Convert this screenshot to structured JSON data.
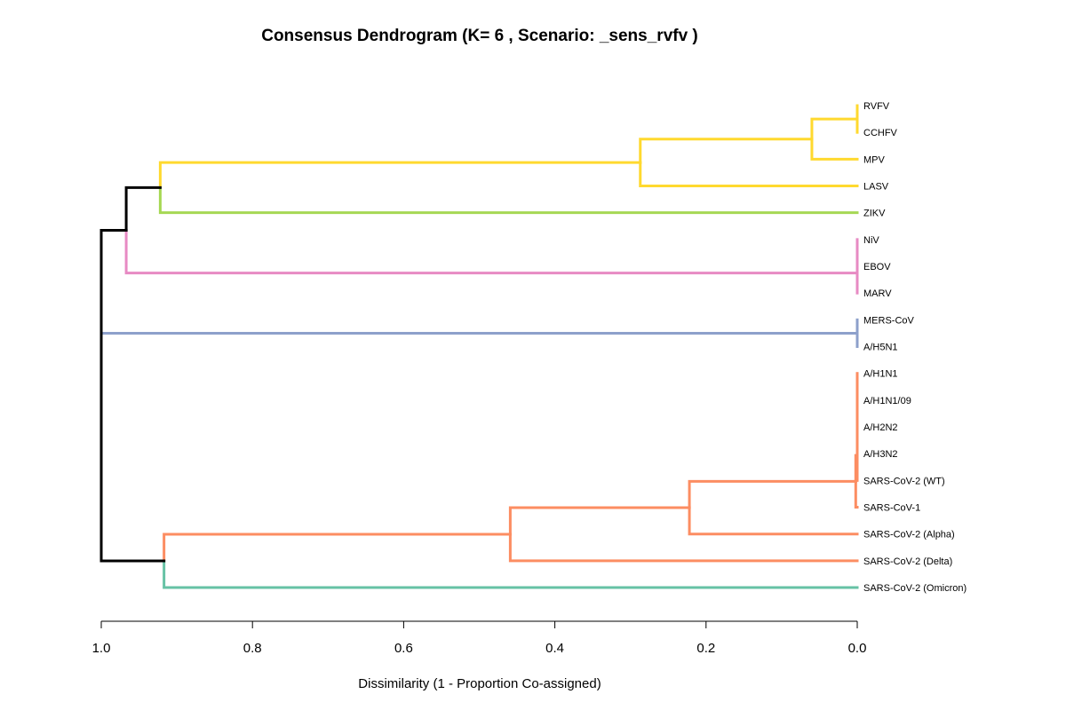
{
  "chart_data": {
    "type": "dendrogram",
    "title": "Consensus Dendrogram (K= 6 , Scenario:  _sens_rvfv )",
    "xlabel": "Dissimilarity (1 - Proportion Co-assigned)",
    "orientation": "horizontal, leaves on right",
    "xlim": [
      1.0,
      0.0
    ],
    "x_ticks": [
      1.0,
      0.8,
      0.6,
      0.4,
      0.2,
      0.0
    ],
    "x_tick_labels": [
      "1.0",
      "0.8",
      "0.6",
      "0.4",
      "0.2",
      "0.0"
    ],
    "leaves": [
      "RVFV",
      "CCHFV",
      "MPV",
      "LASV",
      "ZIKV",
      "NiV",
      "EBOV",
      "MARV",
      "MERS-CoV",
      "A/H5N1",
      "A/H1N1",
      "A/H1N1/09",
      "A/H2N2",
      "A/H3N2",
      "SARS-CoV-2 (WT)",
      "SARS-CoV-1",
      "SARS-CoV-2 (Alpha)",
      "SARS-CoV-2 (Delta)",
      "SARS-CoV-2 (Omicron)"
    ],
    "colors": {
      "yellow": "#FFD92F",
      "green": "#A6D854",
      "pink": "#E78AC3",
      "blue": "#8DA0CB",
      "orange": "#FC8D62",
      "teal": "#66C2A5",
      "black": "#000000"
    },
    "merges": [
      {
        "id": "m1",
        "children": [
          "RVFV",
          "CCHFV"
        ],
        "height": 0.0,
        "color": "yellow"
      },
      {
        "id": "m2",
        "children": [
          "m1",
          "MPV"
        ],
        "height": 0.06,
        "color": "yellow"
      },
      {
        "id": "m3",
        "children": [
          "m2",
          "LASV"
        ],
        "height": 0.287,
        "color": "yellow"
      },
      {
        "id": "m4",
        "children": [
          "m3",
          "ZIKV"
        ],
        "height": 0.922,
        "colors": [
          "yellow",
          "green"
        ]
      },
      {
        "id": "m5",
        "children": [
          "NiV",
          "EBOV"
        ],
        "height": 0.0,
        "color": "pink"
      },
      {
        "id": "m6",
        "children": [
          "m5",
          "MARV"
        ],
        "height": 0.0,
        "color": "pink"
      },
      {
        "id": "m7",
        "children": [
          "m4",
          "m6"
        ],
        "height": 0.967,
        "colors": [
          "black",
          "pink"
        ]
      },
      {
        "id": "m8",
        "children": [
          "MERS-CoV",
          "A/H5N1"
        ],
        "height": 0.0,
        "color": "blue"
      },
      {
        "id": "m9",
        "children": [
          "A/H1N1",
          "A/H1N1/09"
        ],
        "height": 0.0,
        "color": "orange"
      },
      {
        "id": "m10",
        "children": [
          "m9",
          "A/H2N2"
        ],
        "height": 0.0,
        "color": "orange"
      },
      {
        "id": "m11",
        "children": [
          "m10",
          "A/H3N2"
        ],
        "height": 0.0,
        "color": "orange"
      },
      {
        "id": "m12",
        "children": [
          "m11",
          "SARS-CoV-2 (WT)"
        ],
        "height": 0.0,
        "color": "orange"
      },
      {
        "id": "m13",
        "children": [
          "m12",
          "SARS-CoV-1"
        ],
        "height": 0.002,
        "color": "orange"
      },
      {
        "id": "m14",
        "children": [
          "m13",
          "SARS-CoV-2 (Alpha)"
        ],
        "height": 0.222,
        "color": "orange"
      },
      {
        "id": "m15",
        "children": [
          "m14",
          "SARS-CoV-2 (Delta)"
        ],
        "height": 0.459,
        "color": "orange"
      },
      {
        "id": "m16",
        "children": [
          "m15",
          "SARS-CoV-2 (Omicron)"
        ],
        "height": 0.917,
        "colors": [
          "orange",
          "teal"
        ]
      },
      {
        "id": "m17",
        "children": [
          "m7",
          "m8"
        ],
        "height": 1.0,
        "colors": [
          "black",
          "blue"
        ]
      },
      {
        "id": "m18",
        "children": [
          "m17",
          "m16"
        ],
        "height": 1.0,
        "colors": [
          "black",
          "black"
        ]
      }
    ]
  }
}
